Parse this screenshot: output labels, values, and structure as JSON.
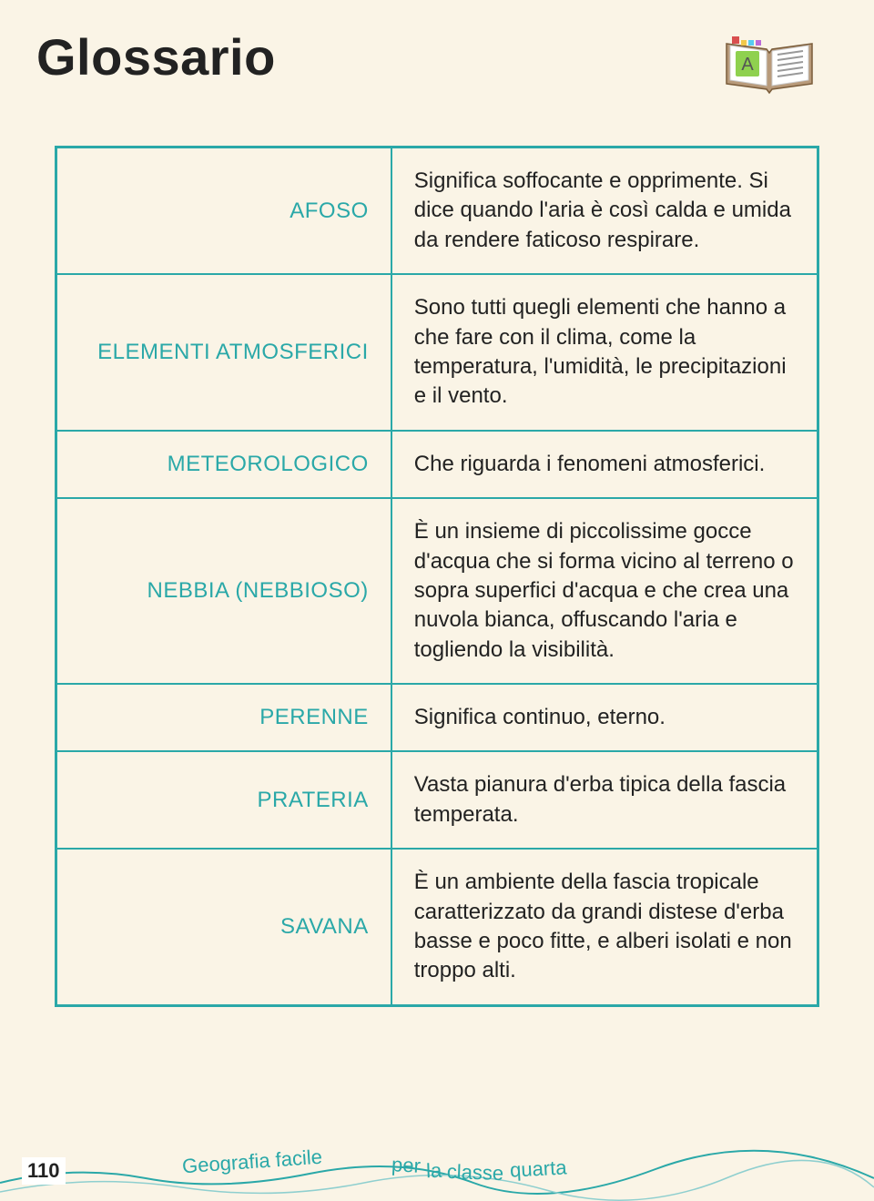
{
  "title": "Glossario",
  "page_number": "110",
  "footer": {
    "left": "Geografia facile",
    "right": "per la classe quarta"
  },
  "colors": {
    "background": "#faf4e6",
    "accent": "#2aa8a8",
    "text": "#222222",
    "icon_green": "#8fd14f",
    "icon_red": "#d94f4f",
    "icon_page": "#ffffff",
    "icon_cover": "#b89a7a"
  },
  "glossary": [
    {
      "term": "AFOSO",
      "definition": "Significa soffocante e opprimente. Si dice quando l'aria è così calda e umida da rendere faticoso respirare."
    },
    {
      "term": "ELEMENTI ATMOSFERICI",
      "definition": "Sono tutti quegli elementi che hanno a che fare con il clima, come la temperatura, l'umidità, le precipitazioni e il vento."
    },
    {
      "term": "METEOROLOGICO",
      "definition": "Che riguarda i fenomeni atmosferici."
    },
    {
      "term": "NEBBIA (NEBBIOSO)",
      "definition": "È un insieme di piccolissime gocce d'acqua che si forma vicino al terreno o sopra superfici d'acqua e che crea una nuvola bianca, offuscando l'aria e togliendo la visibilità."
    },
    {
      "term": "PERENNE",
      "definition": "Significa continuo, eterno."
    },
    {
      "term": "PRATERIA",
      "definition": "Vasta pianura d'erba tipica della fascia temperata."
    },
    {
      "term": "SAVANA",
      "definition": "È un ambiente della fascia tropicale caratterizzato da grandi distese d'erba basse e poco fitte, e alberi isolati e non troppo alti."
    }
  ]
}
